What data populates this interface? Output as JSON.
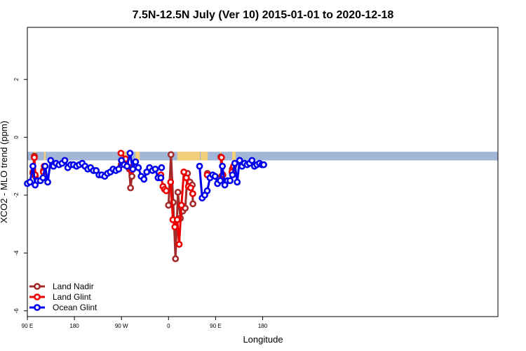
{
  "chart_data": {
    "type": "line",
    "title": "7.5N-12.5N July (Ver 10)   2015-01-01 to 2020-12-18",
    "xlabel": "Longitude",
    "ylabel": "XCO2 - MLO trend (ppm)",
    "xlim": [
      -90,
      180
    ],
    "ylim": [
      -6.2,
      3.8
    ],
    "x_ticks": [
      {
        "value": -90,
        "label": "90 E"
      },
      {
        "value": -63,
        "label": "180"
      },
      {
        "value": -36,
        "label": "90 W"
      },
      {
        "value": -9,
        "label": "0"
      },
      {
        "value": 18,
        "label": "90 E"
      },
      {
        "value": 45,
        "label": "180"
      }
    ],
    "y_ticks": [
      {
        "value": 2,
        "label": "2"
      },
      {
        "value": 0,
        "label": "0"
      },
      {
        "value": -2,
        "label": "-2"
      },
      {
        "value": -4,
        "label": "-4"
      },
      {
        "value": -6,
        "label": "-6"
      }
    ],
    "grid": false,
    "legend_position": "bottom-left",
    "background_band": {
      "ymin": -0.8,
      "ymax": -0.5,
      "ocean_color": "#a2b6d8",
      "land_color": "#f2d079"
    },
    "land_segments": [
      [
        -86.5,
        -85.0
      ],
      [
        -80.5,
        -79.5
      ],
      [
        -35.0,
        -31.0
      ],
      [
        -28.0,
        -25.5
      ],
      [
        -4.0,
        4.5
      ],
      [
        4.5,
        9.0
      ],
      [
        9.5,
        13.5
      ],
      [
        20.6,
        21.2
      ],
      [
        27.5,
        29.5
      ]
    ],
    "series": [
      {
        "name": "Land Nadir",
        "color": "#a52a2a",
        "segments": [
          {
            "x": [
              -86.8,
              -86.0,
              -85.4
            ],
            "y": [
              -1.2,
              -0.65,
              -1.35
            ]
          },
          {
            "x": [
              -80.8,
              -80.3
            ],
            "y": [
              -1.15,
              -1.0
            ]
          },
          {
            "x": [
              -36.2,
              -33.6,
              -31.5,
              -30.8,
              -30.0
            ],
            "y": [
              -0.95,
              -0.95,
              -1.1,
              -1.75,
              -1.35
            ]
          },
          {
            "x": [
              -9.0,
              -7.6,
              -6.3,
              -5.0,
              -3.6,
              -2.2,
              -0.8,
              0.6,
              1.9,
              3.3,
              4.6,
              5.0
            ],
            "y": [
              -2.35,
              -0.6,
              -2.25,
              -4.2,
              -1.9,
              -2.8,
              -2.55,
              -2.45,
              -1.25,
              -1.55,
              -1.65,
              -2.3
            ]
          },
          {
            "x": [
              13.3
            ],
            "y": [
              -1.25
            ]
          },
          {
            "x": [
              21.0,
              21.4
            ],
            "y": [
              -0.68,
              -1.35
            ]
          },
          {
            "x": [
              27.6
            ],
            "y": [
              -1.1
            ]
          }
        ]
      },
      {
        "name": "Land Glint",
        "color": "#ee0000",
        "segments": [
          {
            "x": [
              -86.8,
              -86.0,
              -85.5
            ],
            "y": [
              -1.25,
              -0.7,
              -1.3
            ]
          },
          {
            "x": [
              -80.8,
              -80.2
            ],
            "y": [
              -1.2,
              -1.0
            ]
          },
          {
            "x": [
              -36.3,
              -33.6
            ],
            "y": [
              -0.55,
              -0.75
            ]
          },
          {
            "x": [
              -31.1,
              -30.3
            ],
            "y": [
              -1.05,
              -1.15
            ]
          },
          {
            "x": [
              -13.4,
              -12.2,
              -11.3,
              -10.3
            ],
            "y": [
              -1.3,
              -1.7,
              -1.8,
              -1.85
            ]
          },
          {
            "x": [
              -7.8,
              -6.5,
              -5.4,
              -4.0,
              -2.9,
              -1.6,
              -0.2,
              1.2,
              2.4,
              3.7,
              4.9
            ],
            "y": [
              -1.55,
              -2.85,
              -3.1,
              -2.85,
              -3.7,
              -2.35,
              -1.2,
              -1.4,
              -1.7,
              -1.75,
              -1.95
            ]
          },
          {
            "x": [
              13.2
            ],
            "y": [
              -1.3
            ]
          },
          {
            "x": [
              21.4,
              22.2
            ],
            "y": [
              -0.7,
              -1.3
            ]
          },
          {
            "x": [
              27.4,
              28.3
            ],
            "y": [
              -1.2,
              -1.0
            ]
          }
        ]
      },
      {
        "name": "Ocean Glint",
        "color": "#0000ee",
        "segments": [
          {
            "x": [
              -90.0,
              -88.5,
              -86.8,
              -85.5,
              -84.1,
              -82.5,
              -81.0,
              -79.8,
              -78.3,
              -76.6,
              -75.0,
              -73.5,
              -71.8,
              -70.1,
              -68.5,
              -66.8,
              -65.1,
              -63.5,
              -61.8,
              -60.2,
              -58.5,
              -56.9,
              -55.3,
              -53.7,
              -52.1,
              -50.5,
              -48.9,
              -47.3,
              -45.6,
              -44.0,
              -42.4,
              -40.8,
              -39.2,
              -37.6,
              -36.0,
              -34.4,
              -32.8,
              -31.1,
              -29.5,
              -27.9,
              -26.3,
              -24.7,
              -23.1,
              -21.5,
              -19.9,
              -18.2,
              -16.6,
              -15.0,
              -13.4
            ],
            "y": [
              -1.6,
              -1.55,
              -1.0,
              -1.65,
              -1.5,
              -1.5,
              -1.4,
              -1.0,
              -1.55,
              -0.8,
              -1.0,
              -0.9,
              -0.95,
              -0.9,
              -0.8,
              -1.05,
              -0.95,
              -0.95,
              -1.0,
              -0.95,
              -0.9,
              -1.0,
              -1.1,
              -1.05,
              -1.15,
              -1.15,
              -1.3,
              -1.3,
              -1.35,
              -1.25,
              -1.2,
              -1.1,
              -1.15,
              -1.1,
              -0.8,
              -0.95,
              -1.0,
              -0.55,
              -1.1,
              -0.85,
              -1.05,
              -1.35,
              -1.45,
              -1.2,
              -1.05,
              -1.15,
              -1.1,
              -1.4,
              -1.4
            ]
          },
          {
            "x": [
              -13.0
            ],
            "y": [
              -1.05
            ]
          },
          {
            "x": [
              8.8,
              10.3,
              11.8,
              13.2,
              14.8,
              16.3,
              17.7,
              19.1,
              20.7,
              21.9,
              23.3,
              24.8,
              26.3,
              27.7,
              29.0,
              30.4,
              31.8,
              33.2,
              34.6,
              36.1,
              37.5,
              38.9,
              40.3,
              41.7,
              43.2,
              44.6,
              45.6
            ],
            "y": [
              -1.0,
              -2.1,
              -2.0,
              -1.85,
              -1.4,
              -1.3,
              -1.35,
              -1.6,
              -1.5,
              -1.0,
              -1.65,
              -1.5,
              -1.5,
              -1.3,
              -0.9,
              -1.55,
              -0.8,
              -1.0,
              -0.9,
              -0.95,
              -0.9,
              -0.8,
              -1.0,
              -0.95,
              -0.9,
              -0.95,
              -0.95
            ]
          }
        ]
      }
    ]
  }
}
